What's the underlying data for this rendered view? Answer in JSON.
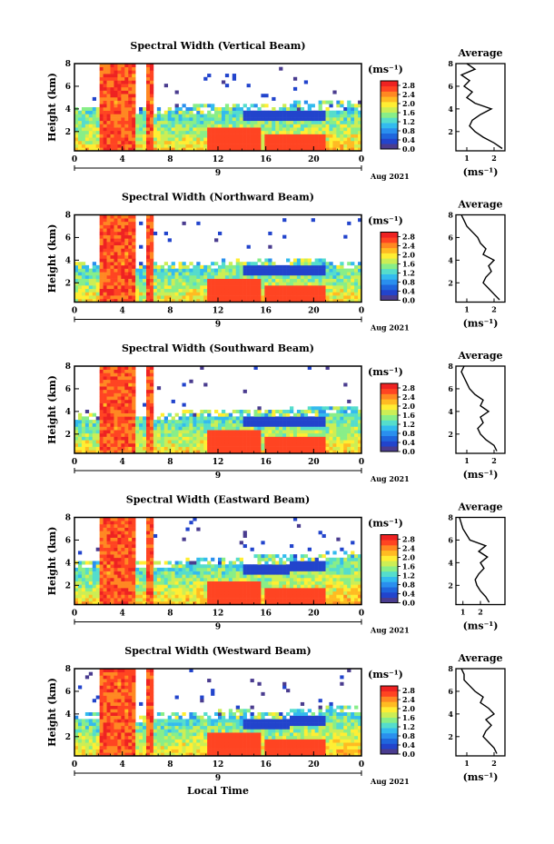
{
  "figure": {
    "xlabel": "Local Time",
    "date_label": "Aug 2021",
    "day_label": "9",
    "colorbar_unit": "(ms⁻¹)",
    "avg_title": "Average",
    "avg_xlabel": "(ms⁻¹)"
  },
  "colors": {
    "scale": [
      "#4a3c8f",
      "#2244cc",
      "#1f66dd",
      "#2a8fee",
      "#33bbee",
      "#55ddcc",
      "#88ee88",
      "#ccee55",
      "#ffee33",
      "#ffbb22",
      "#ff8822",
      "#ff4422",
      "#ee2222"
    ],
    "background": "#ffffff"
  },
  "chart_data": [
    {
      "type": "heatmap",
      "title": "Spectral Width (Vertical Beam)",
      "ylabel": "Height (km)",
      "x_ticks": [
        "0",
        "4",
        "8",
        "12",
        "16",
        "20",
        "0"
      ],
      "y_ticks": [
        "2",
        "4",
        "6",
        "8"
      ],
      "xlim": [
        0,
        24
      ],
      "ylim": [
        0.3,
        8
      ],
      "colorbar": {
        "ticks": [
          "0.0",
          "0.4",
          "0.8",
          "1.2",
          "1.6",
          "2.0",
          "2.4",
          "2.8"
        ],
        "range": [
          0,
          3.0
        ]
      },
      "layer_top_km": [
        3.6,
        3.5,
        3.6,
        3.7,
        3.8,
        3.9,
        4.0,
        4.0
      ],
      "profile": {
        "title": "Average",
        "x_ticks": [
          "1",
          "2"
        ],
        "xlim": [
          0.6,
          2.4
        ],
        "y_ticks": [
          "2",
          "4",
          "6",
          "8"
        ],
        "heights": [
          0.5,
          1,
          1.5,
          2,
          2.5,
          3,
          3.5,
          4,
          4.5,
          5,
          5.5,
          6,
          6.5,
          7,
          7.5,
          8
        ],
        "values": [
          2.3,
          2.0,
          1.6,
          1.3,
          1.1,
          1.2,
          1.5,
          1.9,
          1.3,
          1.0,
          1.2,
          0.9,
          1.1,
          0.8,
          1.3,
          1.0
        ]
      }
    },
    {
      "type": "heatmap",
      "title": "Spectral Width (Northward Beam)",
      "ylabel": "Height (km)",
      "x_ticks": [
        "0",
        "4",
        "8",
        "12",
        "16",
        "20",
        "0"
      ],
      "y_ticks": [
        "2",
        "4",
        "6",
        "8"
      ],
      "xlim": [
        0,
        24
      ],
      "ylim": [
        0.3,
        8
      ],
      "colorbar": {
        "ticks": [
          "0.0",
          "0.4",
          "0.8",
          "1.2",
          "1.6",
          "2.0",
          "2.4",
          "2.8"
        ],
        "range": [
          0,
          3.0
        ]
      },
      "layer_top_km": [
        3.2,
        3.1,
        3.3,
        3.4,
        3.5,
        3.6,
        3.5,
        3.4
      ],
      "profile": {
        "title": "Average",
        "x_ticks": [
          "1",
          "2"
        ],
        "xlim": [
          0.6,
          2.4
        ],
        "y_ticks": [
          "2",
          "4",
          "6",
          "8"
        ],
        "heights": [
          0.5,
          1,
          1.5,
          2,
          2.5,
          3,
          3.5,
          4,
          4.5,
          5,
          5.5,
          6,
          6.5,
          7,
          7.5,
          8
        ],
        "values": [
          2.2,
          2.0,
          1.8,
          1.6,
          1.7,
          1.9,
          1.8,
          2.0,
          1.6,
          1.7,
          1.5,
          1.4,
          1.2,
          1.0,
          0.9,
          0.8
        ]
      }
    },
    {
      "type": "heatmap",
      "title": "Spectral Width (Southward Beam)",
      "ylabel": "Height (km)",
      "x_ticks": [
        "0",
        "4",
        "8",
        "12",
        "16",
        "20",
        "0"
      ],
      "y_ticks": [
        "2",
        "4",
        "6",
        "8"
      ],
      "xlim": [
        0,
        24
      ],
      "ylim": [
        0.3,
        8
      ],
      "colorbar": {
        "ticks": [
          "0.0",
          "0.4",
          "0.8",
          "1.2",
          "1.6",
          "2.0",
          "2.4",
          "2.8"
        ],
        "range": [
          0,
          3.0
        ]
      },
      "layer_top_km": [
        3.4,
        3.3,
        3.4,
        3.5,
        3.6,
        3.5,
        3.7,
        3.8
      ],
      "profile": {
        "title": "Average",
        "x_ticks": [
          "1",
          "2"
        ],
        "xlim": [
          0.6,
          2.4
        ],
        "y_ticks": [
          "2",
          "4",
          "6",
          "8"
        ],
        "heights": [
          0.5,
          1,
          1.5,
          2,
          2.5,
          3,
          3.5,
          4,
          4.5,
          5,
          5.5,
          6,
          6.5,
          7,
          7.5,
          8
        ],
        "values": [
          2.1,
          2.0,
          1.7,
          1.5,
          1.4,
          1.6,
          1.5,
          1.8,
          1.5,
          1.6,
          1.3,
          1.1,
          1.0,
          0.9,
          0.8,
          0.9
        ]
      }
    },
    {
      "type": "heatmap",
      "title": "Spectral Width (Eastward Beam)",
      "ylabel": "Height (km)",
      "x_ticks": [
        "0",
        "4",
        "8",
        "12",
        "16",
        "20",
        "0"
      ],
      "y_ticks": [
        "2",
        "4",
        "6",
        "8"
      ],
      "xlim": [
        0,
        24
      ],
      "ylim": [
        0.3,
        8
      ],
      "colorbar": {
        "ticks": [
          "0.0",
          "0.4",
          "0.8",
          "1.2",
          "1.6",
          "2.0",
          "2.4",
          "2.8"
        ],
        "range": [
          0,
          3.0
        ]
      },
      "layer_top_km": [
        3.6,
        3.5,
        3.6,
        3.8,
        3.9,
        4.0,
        4.2,
        4.4
      ],
      "profile": {
        "title": "Average",
        "x_ticks": [
          "1",
          "2"
        ],
        "xlim": [
          0.6,
          3.4
        ],
        "y_ticks": [
          "2",
          "4",
          "6",
          "8"
        ],
        "heights": [
          0.5,
          1,
          1.5,
          2,
          2.5,
          3,
          3.5,
          4,
          4.5,
          5,
          5.5,
          6,
          6.5,
          7,
          7.5,
          8
        ],
        "values": [
          2.5,
          2.3,
          2.0,
          1.8,
          1.7,
          1.9,
          2.2,
          2.0,
          2.4,
          1.9,
          2.3,
          1.4,
          1.2,
          1.0,
          0.9,
          0.8
        ]
      }
    },
    {
      "type": "heatmap",
      "title": "Spectral Width (Westward Beam)",
      "ylabel": "Height (km)",
      "x_ticks": [
        "0",
        "4",
        "8",
        "12",
        "16",
        "20",
        "0"
      ],
      "y_ticks": [
        "2",
        "4",
        "6",
        "8"
      ],
      "xlim": [
        0,
        24
      ],
      "ylim": [
        0.3,
        8
      ],
      "colorbar": {
        "ticks": [
          "0.0",
          "0.4",
          "0.8",
          "1.2",
          "1.6",
          "2.0",
          "2.4",
          "2.8"
        ],
        "range": [
          0,
          3.0
        ]
      },
      "layer_top_km": [
        3.5,
        3.4,
        3.5,
        3.6,
        3.7,
        3.5,
        3.8,
        4.2
      ],
      "profile": {
        "title": "Average",
        "x_ticks": [
          "1",
          "2"
        ],
        "xlim": [
          0.6,
          2.4
        ],
        "y_ticks": [
          "2",
          "4",
          "6",
          "8"
        ],
        "heights": [
          0.5,
          1,
          1.5,
          2,
          2.5,
          3,
          3.5,
          4,
          4.5,
          5,
          5.5,
          6,
          6.5,
          7,
          7.5,
          8
        ],
        "values": [
          2.1,
          2.0,
          1.8,
          1.6,
          1.7,
          1.9,
          1.7,
          2.0,
          1.8,
          1.5,
          1.6,
          1.3,
          1.1,
          0.9,
          0.9,
          0.8
        ]
      }
    }
  ]
}
